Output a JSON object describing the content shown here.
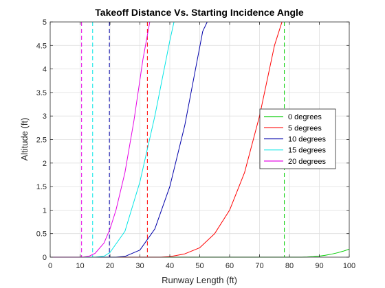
{
  "chart_data": {
    "type": "line",
    "title": "Takeoff Distance Vs. Starting Incidence Angle",
    "xlabel": "Runway Length (ft)",
    "ylabel": "Altitude (ft)",
    "xlim": [
      0,
      100
    ],
    "ylim": [
      0,
      5
    ],
    "xticks": [
      "0",
      "10",
      "20",
      "30",
      "40",
      "50",
      "60",
      "70",
      "80",
      "90",
      "100"
    ],
    "yticks": [
      "0",
      "0.5",
      "1",
      "1.5",
      "2",
      "2.5",
      "3",
      "3.5",
      "4",
      "4.5",
      "5"
    ],
    "grid": true,
    "legend_position": "right",
    "series": [
      {
        "name": "0 degrees",
        "color": "#00cc00",
        "vline": 78.3,
        "x": [
          84,
          86,
          88,
          90,
          92,
          94,
          96,
          98,
          100
        ],
        "y": [
          0,
          0.003,
          0.01,
          0.022,
          0.04,
          0.063,
          0.092,
          0.127,
          0.17
        ]
      },
      {
        "name": "5 degrees",
        "color": "#ff0000",
        "vline": 32.5,
        "x": [
          37,
          40,
          45,
          50,
          55,
          60,
          65,
          70,
          75,
          77.5
        ],
        "y": [
          0,
          0.01,
          0.07,
          0.2,
          0.5,
          1.0,
          1.8,
          3.0,
          4.5,
          5.0
        ]
      },
      {
        "name": "10 degrees",
        "color": "#0000aa",
        "vline": 19.8,
        "x": [
          22,
          25,
          30,
          35,
          40,
          45,
          48,
          51,
          52.5
        ],
        "y": [
          0,
          0.015,
          0.15,
          0.6,
          1.5,
          2.8,
          3.8,
          4.8,
          5.0
        ]
      },
      {
        "name": "15 degrees",
        "color": "#00e5e5",
        "vline": 14.2,
        "x": [
          15,
          18,
          20,
          25,
          30,
          35,
          40,
          41.4
        ],
        "y": [
          0,
          0.02,
          0.1,
          0.55,
          1.6,
          3.0,
          4.6,
          5.0
        ]
      },
      {
        "name": "20 degrees",
        "color": "#e500e5",
        "vline": 10.5,
        "x": [
          11,
          13,
          15,
          18,
          20,
          22,
          25,
          28,
          31,
          33.3
        ],
        "y": [
          0,
          0.02,
          0.08,
          0.3,
          0.6,
          1.0,
          1.8,
          2.9,
          4.2,
          5.0
        ]
      }
    ]
  }
}
